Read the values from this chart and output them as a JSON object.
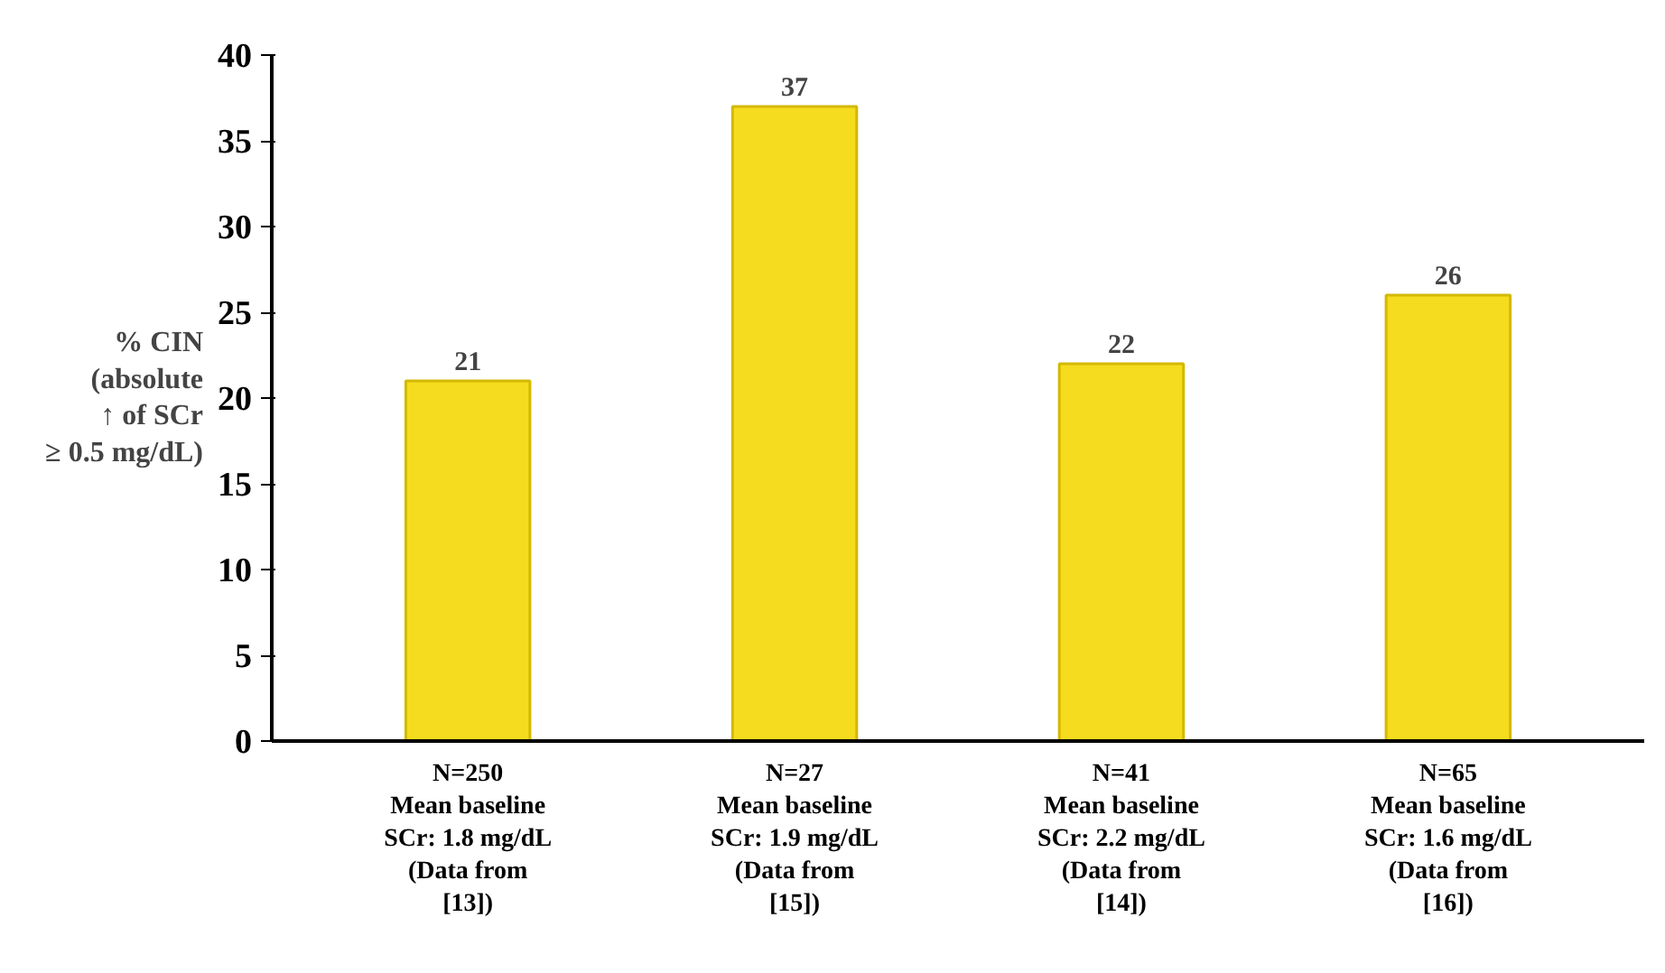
{
  "chart_data": {
    "type": "bar",
    "ylabel": "% CIN\n(absolute\n↑ of SCr\n≥ 0.5 mg/dL)",
    "categories": [
      "N=250\nMean baseline\nSCr: 1.8 mg/dL\n(Data from\n[13])",
      "N=27\nMean baseline\nSCr: 1.9 mg/dL\n(Data from\n[15])",
      "N=41\nMean baseline\nSCr: 2.2 mg/dL\n(Data from\n[14])",
      "N=65\nMean baseline\nSCr: 1.6 mg/dL\n(Data from\n[16])"
    ],
    "values": [
      21,
      37,
      22,
      26
    ],
    "color": "#f5dc1e",
    "data_labels": true,
    "grid": false,
    "ylim": [
      0,
      40
    ],
    "yticks": [
      0,
      5,
      10,
      15,
      20,
      25,
      30,
      35,
      40
    ]
  }
}
